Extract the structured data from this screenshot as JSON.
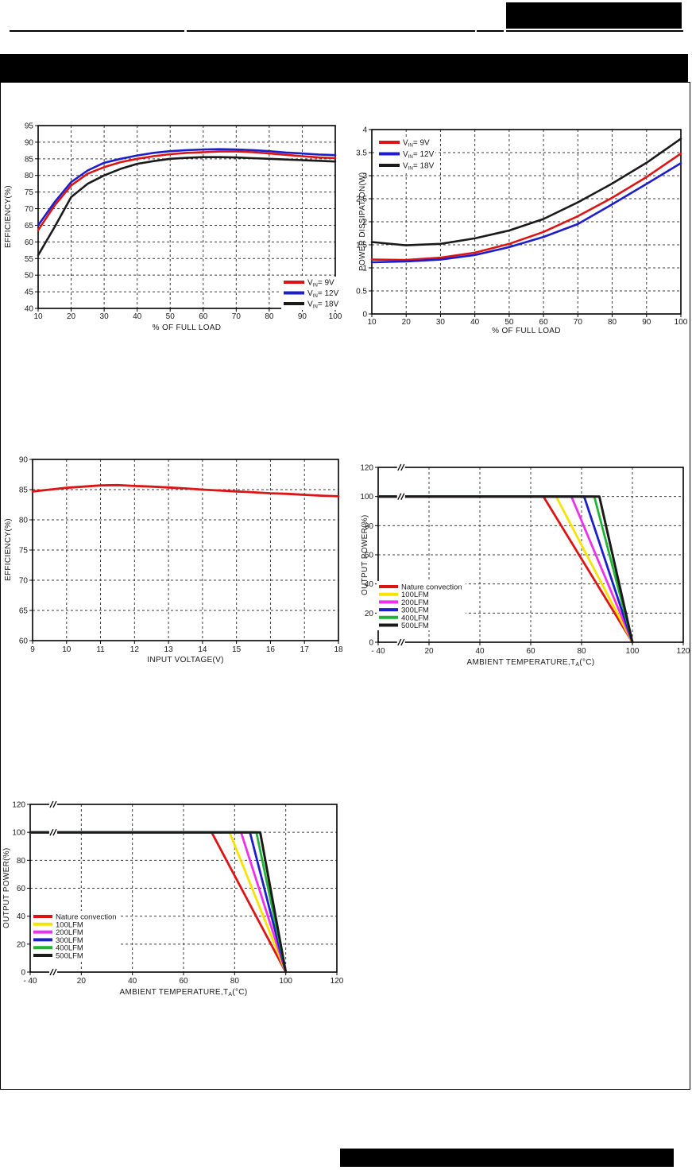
{
  "colors": {
    "red": "#dd1414",
    "blue": "#1d1dcc",
    "black": "#1a1a1a",
    "yellow": "#f5e400",
    "magenta": "#ee30ee",
    "green": "#1fb434"
  },
  "chart_data": [
    {
      "id": "efficiency-vs-load",
      "type": "line",
      "xlabel": "% OF FULL LOAD",
      "xlabel_parts": [
        "% OF FULL LOAD",
        "",
        ""
      ],
      "ylabel": "EFFICIENCY(%)",
      "xlim": [
        10,
        100
      ],
      "ylim": [
        40,
        95
      ],
      "xticks": [
        10,
        20,
        30,
        40,
        50,
        60,
        70,
        80,
        90,
        100
      ],
      "yticks": [
        40,
        45,
        50,
        55,
        60,
        65,
        70,
        75,
        80,
        85,
        90,
        95
      ],
      "grid": true,
      "legend_position": "bottom-right",
      "legend_entries": [
        {
          "pre": "V",
          "sub": "IN",
          "post": "=  9V",
          "color": "#dd1414"
        },
        {
          "pre": "V",
          "sub": "IN",
          "post": "= 12V",
          "color": "#1d1dcc"
        },
        {
          "pre": "V",
          "sub": "IN",
          "post": "= 18V",
          "color": "#1a1a1a"
        }
      ],
      "series": [
        {
          "name": "VIN=9V",
          "color": "#dd1414",
          "width": 2.6,
          "x": [
            10,
            15,
            20,
            25,
            30,
            35,
            40,
            45,
            50,
            55,
            60,
            65,
            70,
            75,
            80,
            85,
            90,
            95,
            100
          ],
          "y": [
            63.5,
            71,
            77,
            80.5,
            82.5,
            84,
            85,
            85.8,
            86.4,
            86.8,
            87,
            87.2,
            87.2,
            87,
            86.6,
            86.2,
            85.8,
            85.4,
            85.2
          ]
        },
        {
          "name": "VIN=12V",
          "color": "#1d1dcc",
          "width": 2.6,
          "x": [
            10,
            15,
            20,
            25,
            30,
            35,
            40,
            45,
            50,
            55,
            60,
            65,
            70,
            75,
            80,
            85,
            90,
            95,
            100
          ],
          "y": [
            65,
            72,
            78,
            81.5,
            83.8,
            85,
            86,
            86.8,
            87.3,
            87.6,
            87.8,
            87.9,
            87.8,
            87.6,
            87.3,
            86.9,
            86.6,
            86.3,
            86.1
          ]
        },
        {
          "name": "VIN=18V",
          "color": "#1a1a1a",
          "width": 2.6,
          "x": [
            10,
            15,
            20,
            25,
            30,
            35,
            40,
            45,
            50,
            55,
            60,
            65,
            70,
            75,
            80,
            85,
            90,
            95,
            100
          ],
          "y": [
            56,
            64.5,
            73.5,
            77.5,
            80,
            82,
            83.5,
            84.3,
            85,
            85.3,
            85.5,
            85.5,
            85.4,
            85.2,
            85,
            84.8,
            84.6,
            84.4,
            84.2
          ]
        }
      ]
    },
    {
      "id": "power-dissipation-vs-load",
      "type": "line",
      "xlabel": "% OF FULL LOAD",
      "xlabel_parts": [
        "% OF FULL LOAD",
        "",
        ""
      ],
      "ylabel": "POWER DISSIPATION(W)",
      "xlim": [
        10,
        100
      ],
      "ylim": [
        0,
        4
      ],
      "xticks": [
        10,
        20,
        30,
        40,
        50,
        60,
        70,
        80,
        90,
        100
      ],
      "yticks": [
        0,
        0.5,
        1,
        1.5,
        2,
        2.5,
        3,
        3.5,
        4
      ],
      "grid": true,
      "legend_position": "top-left",
      "legend_entries": [
        {
          "pre": "V",
          "sub": "IN",
          "post": "=  9V",
          "color": "#dd1414"
        },
        {
          "pre": "V",
          "sub": "IN",
          "post": "= 12V",
          "color": "#1d1dcc"
        },
        {
          "pre": "V",
          "sub": "IN",
          "post": "= 18V",
          "color": "#1a1a1a"
        }
      ],
      "series": [
        {
          "name": "VIN=9V",
          "color": "#dd1414",
          "width": 2.6,
          "x": [
            10,
            20,
            30,
            40,
            50,
            60,
            70,
            80,
            90,
            100
          ],
          "y": [
            1.18,
            1.17,
            1.22,
            1.33,
            1.52,
            1.78,
            2.12,
            2.52,
            2.97,
            3.48
          ]
        },
        {
          "name": "VIN=12V",
          "color": "#1d1dcc",
          "width": 2.6,
          "x": [
            10,
            20,
            30,
            40,
            50,
            60,
            70,
            80,
            90,
            100
          ],
          "y": [
            1.12,
            1.14,
            1.18,
            1.28,
            1.45,
            1.67,
            1.95,
            2.38,
            2.82,
            3.27
          ]
        },
        {
          "name": "VIN=18V",
          "color": "#1a1a1a",
          "width": 2.6,
          "x": [
            10,
            20,
            30,
            40,
            50,
            60,
            70,
            80,
            90,
            100
          ],
          "y": [
            1.56,
            1.49,
            1.52,
            1.64,
            1.81,
            2.06,
            2.42,
            2.83,
            3.28,
            3.8
          ]
        }
      ]
    },
    {
      "id": "efficiency-vs-input-voltage",
      "type": "line",
      "xlabel": "INPUT VOLTAGE(V)",
      "xlabel_parts": [
        "INPUT VOLTAGE(V)",
        "",
        ""
      ],
      "ylabel": "EFFICIENCY(%)",
      "xlim": [
        9,
        18
      ],
      "ylim": [
        60,
        90
      ],
      "xticks": [
        9,
        10,
        11,
        12,
        13,
        14,
        15,
        16,
        17,
        18
      ],
      "yticks": [
        60,
        65,
        70,
        75,
        80,
        85,
        90
      ],
      "grid": true,
      "legend_position": "none",
      "legend_entries": [],
      "series": [
        {
          "name": "efficiency",
          "color": "#dd1414",
          "width": 2.8,
          "x": [
            9,
            9.5,
            10,
            10.5,
            11,
            11.5,
            12,
            12.5,
            13,
            13.5,
            14,
            14.5,
            15,
            15.5,
            16,
            16.5,
            17,
            17.5,
            18
          ],
          "y": [
            84.7,
            85.0,
            85.3,
            85.5,
            85.7,
            85.75,
            85.6,
            85.5,
            85.35,
            85.2,
            85.0,
            84.85,
            84.7,
            84.55,
            84.4,
            84.3,
            84.15,
            84.0,
            83.9
          ]
        }
      ]
    },
    {
      "id": "derating-curve-1",
      "type": "line",
      "xlabel": "AMBIENT TEMPERATURE,TA(°C)",
      "xlabel_parts": [
        "AMBIENT TEMPERATURE,T",
        "A",
        "(°C)"
      ],
      "ylabel": "OUTPUT POWER(%)",
      "xlim": [
        -40,
        120
      ],
      "ylim": [
        0,
        120
      ],
      "xticks": [
        -40,
        20,
        40,
        60,
        80,
        100,
        120
      ],
      "xtick_labels": [
        "- 40",
        "20",
        "40",
        "60",
        "80",
        "100",
        "120"
      ],
      "yticks": [
        0,
        20,
        40,
        60,
        80,
        100,
        120
      ],
      "x_units": {
        "values": [
          -40,
          20,
          40,
          60,
          80,
          100,
          120
        ],
        "units": [
          0,
          1,
          2,
          3,
          4,
          5,
          6
        ]
      },
      "x_break": true,
      "grid": true,
      "legend_position": "left",
      "legend_entries": [
        {
          "label": "Nature convection",
          "color": "#dd1414"
        },
        {
          "label": "100LFM",
          "color": "#f5e400"
        },
        {
          "label": "200LFM",
          "color": "#ee30ee"
        },
        {
          "label": "300LFM",
          "color": "#1d1dcc"
        },
        {
          "label": "400LFM",
          "color": "#1fb434"
        },
        {
          "label": "500LFM",
          "color": "#1a1a1a"
        }
      ],
      "series": [
        {
          "name": "Nature convection",
          "color": "#dd1414",
          "width": 2.8,
          "x": [
            -40,
            65,
            100
          ],
          "y": [
            100,
            100,
            0
          ]
        },
        {
          "name": "100LFM",
          "color": "#f5e400",
          "width": 2.8,
          "x": [
            -40,
            70,
            100
          ],
          "y": [
            100,
            100,
            0
          ]
        },
        {
          "name": "200LFM",
          "color": "#ee30ee",
          "width": 2.8,
          "x": [
            -40,
            76,
            100
          ],
          "y": [
            100,
            100,
            0
          ]
        },
        {
          "name": "300LFM",
          "color": "#1d1dcc",
          "width": 2.8,
          "x": [
            -40,
            81,
            100
          ],
          "y": [
            100,
            100,
            0
          ]
        },
        {
          "name": "400LFM",
          "color": "#1fb434",
          "width": 2.8,
          "x": [
            -40,
            85,
            100
          ],
          "y": [
            100,
            100,
            0
          ]
        },
        {
          "name": "500LFM",
          "color": "#1a1a1a",
          "width": 3,
          "x": [
            -40,
            87,
            100
          ],
          "y": [
            100,
            100,
            0
          ]
        }
      ]
    },
    {
      "id": "derating-curve-2",
      "type": "line",
      "xlabel": "AMBIENT TEMPERATURE,TA(°C)",
      "xlabel_parts": [
        "AMBIENT TEMPERATURE,T",
        "A",
        "(°C)"
      ],
      "ylabel": "OUTPUT POWER(%)",
      "xlim": [
        -40,
        120
      ],
      "ylim": [
        0,
        120
      ],
      "xticks": [
        -40,
        20,
        40,
        60,
        80,
        100,
        120
      ],
      "xtick_labels": [
        "- 40",
        "20",
        "40",
        "60",
        "80",
        "100",
        "120"
      ],
      "yticks": [
        0,
        20,
        40,
        60,
        80,
        100,
        120
      ],
      "x_units": {
        "values": [
          -40,
          20,
          40,
          60,
          80,
          100,
          120
        ],
        "units": [
          0,
          1,
          2,
          3,
          4,
          5,
          6
        ]
      },
      "x_break": true,
      "grid": true,
      "legend_position": "left",
      "legend_entries": [
        {
          "label": "Nature convection",
          "color": "#dd1414"
        },
        {
          "label": "100LFM",
          "color": "#f5e400"
        },
        {
          "label": "200LFM",
          "color": "#ee30ee"
        },
        {
          "label": "300LFM",
          "color": "#1d1dcc"
        },
        {
          "label": "400LFM",
          "color": "#1fb434"
        },
        {
          "label": "500LFM",
          "color": "#1a1a1a"
        }
      ],
      "series": [
        {
          "name": "Nature convection",
          "color": "#dd1414",
          "width": 2.8,
          "x": [
            -40,
            71,
            100
          ],
          "y": [
            100,
            100,
            0
          ]
        },
        {
          "name": "100LFM",
          "color": "#f5e400",
          "width": 2.8,
          "x": [
            -40,
            78,
            100
          ],
          "y": [
            100,
            100,
            0
          ]
        },
        {
          "name": "200LFM",
          "color": "#ee30ee",
          "width": 2.8,
          "x": [
            -40,
            82.5,
            100
          ],
          "y": [
            100,
            100,
            0
          ]
        },
        {
          "name": "300LFM",
          "color": "#1d1dcc",
          "width": 2.8,
          "x": [
            -40,
            86,
            100
          ],
          "y": [
            100,
            100,
            0
          ]
        },
        {
          "name": "400LFM",
          "color": "#1fb434",
          "width": 2.8,
          "x": [
            -40,
            88.5,
            100
          ],
          "y": [
            100,
            100,
            0
          ]
        },
        {
          "name": "500LFM",
          "color": "#1a1a1a",
          "width": 3,
          "x": [
            -40,
            90,
            100
          ],
          "y": [
            100,
            100,
            0
          ]
        }
      ]
    }
  ]
}
